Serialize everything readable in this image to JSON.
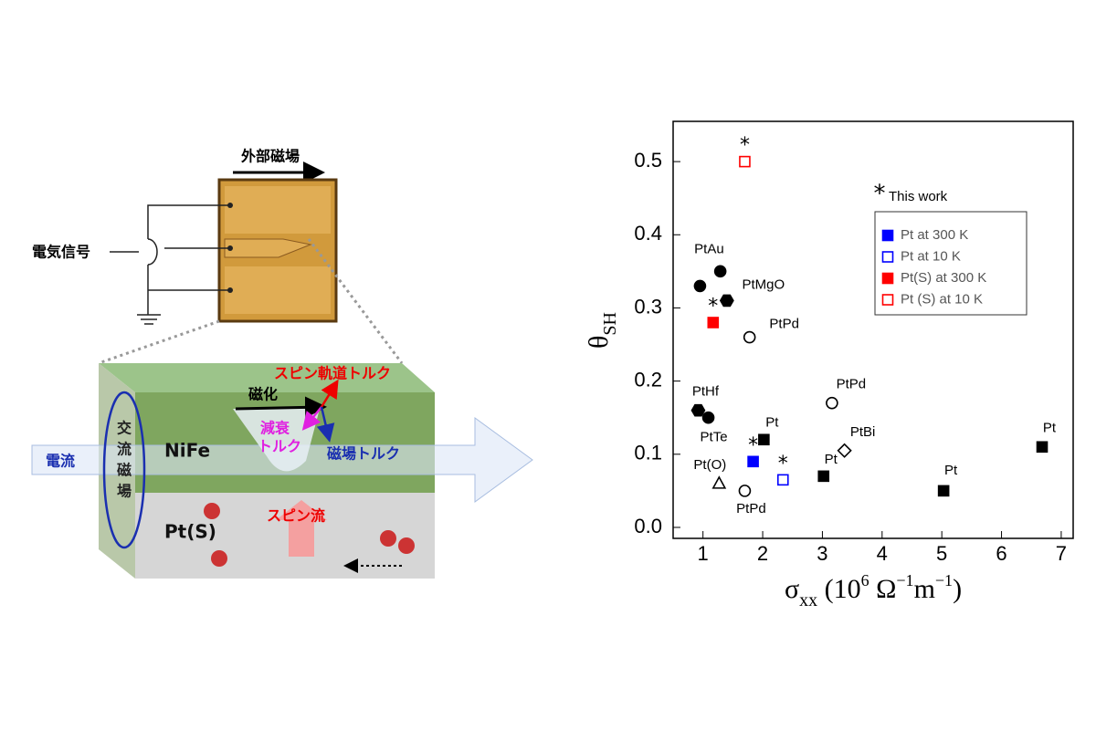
{
  "diagram": {
    "field": "外部磁場",
    "signal": "電気信号",
    "sot": "スピン軌道トルク",
    "magnetization": "磁化",
    "damping": [
      "減衰",
      "トルク"
    ],
    "field_torque": "磁場トルク",
    "nife": "NiFe",
    "current": "電流",
    "ac_field": [
      "交",
      "流",
      "磁",
      "場"
    ],
    "pts": "Pt(S)",
    "spin_current": "スピン流"
  },
  "chart_data": {
    "type": "scatter",
    "xlabel": [
      {
        "text": "σ"
      },
      {
        "text": "xx",
        "style": "sub"
      },
      {
        "text": " (10"
      },
      {
        "text": "6",
        "style": "sup"
      },
      {
        "text": " Ω"
      },
      {
        "text": "−1",
        "style": "sup"
      },
      {
        "text": "m"
      },
      {
        "text": "−1",
        "style": "sup"
      },
      {
        "text": ")"
      }
    ],
    "ylabel": [
      {
        "text": "θ"
      },
      {
        "text": "SH",
        "style": "sub"
      }
    ],
    "xlim": [
      0.5,
      7.2
    ],
    "ylim": [
      -0.015,
      0.555
    ],
    "xticks": [
      1,
      2,
      3,
      4,
      5,
      6,
      7
    ],
    "yticks": [
      {
        "value": 0,
        "label": "0.0"
      },
      0.1,
      0.2,
      0.3,
      0.4,
      0.5
    ],
    "note_marker": "*",
    "note": "This work",
    "series": [
      {
        "name": "Pt at 300 K",
        "color": "#0000ff",
        "marker": "square",
        "filled": true,
        "x": [
          1.84
        ],
        "values": [
          0.09
        ]
      },
      {
        "name": "Pt at 10 K",
        "color": "#0000ff",
        "marker": "square",
        "filled": false,
        "x": [
          2.34
        ],
        "values": [
          0.065
        ]
      },
      {
        "name": "Pt(S) at 300 K",
        "color": "#ff0000",
        "marker": "square",
        "filled": true,
        "x": [
          1.17
        ],
        "values": [
          0.28
        ]
      },
      {
        "name": "Pt (S) at 10 K",
        "color": "#ff0000",
        "marker": "square",
        "filled": false,
        "x": [
          1.7
        ],
        "values": [
          0.5
        ]
      }
    ],
    "points": [
      {
        "label": "PtAu",
        "marker": "circle",
        "filled": true,
        "x": 0.95,
        "y": 0.33
      },
      {
        "label": "PtAu",
        "marker": "circle",
        "filled": true,
        "x": 1.29,
        "y": 0.35
      },
      {
        "label": "PtMgO",
        "marker": "hexagon",
        "filled": true,
        "x": 1.4,
        "y": 0.31
      },
      {
        "label": "PtPd",
        "marker": "circle",
        "filled": false,
        "x": 1.78,
        "y": 0.26
      },
      {
        "label": "PtHf",
        "marker": "hexagon",
        "filled": true,
        "x": 0.92,
        "y": 0.16
      },
      {
        "label": "PtTe",
        "marker": "circle",
        "filled": true,
        "x": 1.09,
        "y": 0.15
      },
      {
        "label": "Pt",
        "marker": "square",
        "filled": true,
        "x": 2.02,
        "y": 0.12
      },
      {
        "label": "PtPd",
        "marker": "circle",
        "filled": false,
        "x": 3.16,
        "y": 0.17
      },
      {
        "label": "PtBi",
        "marker": "diamond",
        "filled": false,
        "x": 3.37,
        "y": 0.105
      },
      {
        "label": "Pt",
        "marker": "square",
        "filled": true,
        "x": 3.02,
        "y": 0.07
      },
      {
        "label": "Pt(O)",
        "marker": "triangle",
        "filled": false,
        "x": 1.27,
        "y": 0.06
      },
      {
        "label": "PtPd",
        "marker": "circle",
        "filled": false,
        "x": 1.7,
        "y": 0.05
      },
      {
        "label": "Pt",
        "marker": "square",
        "filled": true,
        "x": 5.03,
        "y": 0.05
      },
      {
        "label": "Pt",
        "marker": "square",
        "filled": true,
        "x": 6.68,
        "y": 0.11
      }
    ]
  }
}
